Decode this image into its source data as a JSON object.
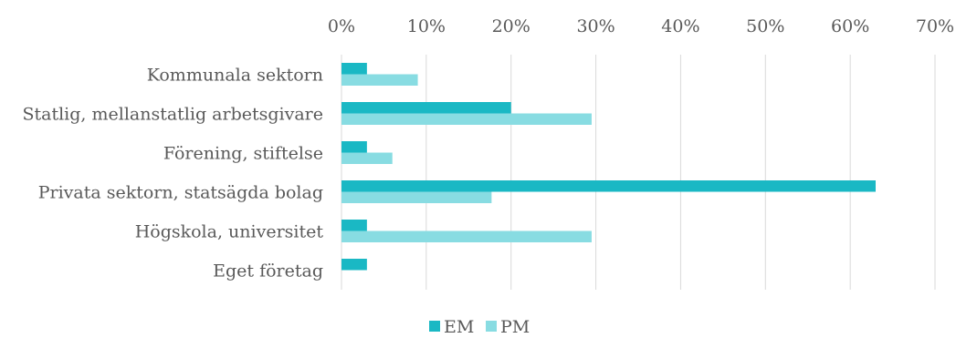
{
  "chart_data": {
    "type": "bar",
    "orientation": "horizontal",
    "categories": [
      "Kommunala sektorn",
      "Statlig, mellanstatlig arbetsgivare",
      "Förening, stiftelse",
      "Privata sektorn, statsägda bolag",
      "Högskola, universitet",
      "Eget företag"
    ],
    "series": [
      {
        "name": "EM",
        "color": "#1ab8c4",
        "values": [
          3,
          20,
          3,
          63,
          3,
          3
        ]
      },
      {
        "name": "PM",
        "color": "#88dce2",
        "values": [
          9,
          29.5,
          6,
          17.7,
          29.5,
          0
        ]
      }
    ],
    "x_ticks": [
      "0%",
      "10%",
      "20%",
      "30%",
      "40%",
      "50%",
      "60%",
      "70%"
    ],
    "xlim": [
      0,
      70
    ],
    "x_axis_position": "top",
    "grid": true,
    "legend_position": "bottom",
    "title": "",
    "xlabel": "",
    "ylabel": ""
  }
}
